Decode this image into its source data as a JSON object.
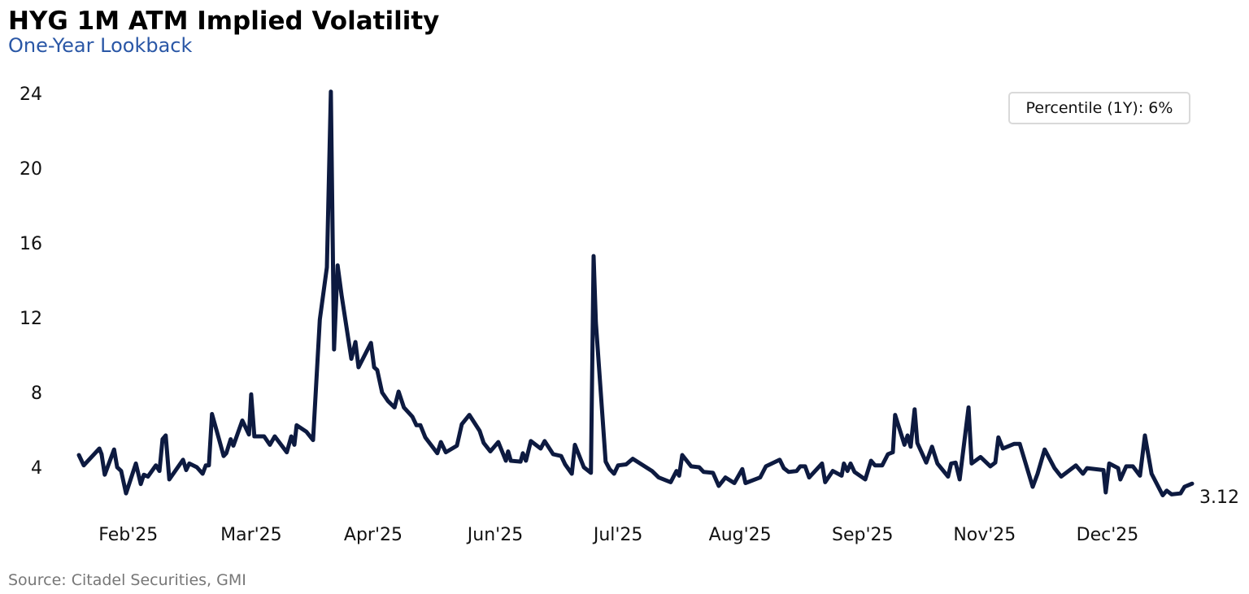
{
  "title": "HYG 1M ATM Implied Volatility",
  "subtitle": "One-Year Lookback",
  "source": "Source: Citadel Securities, GMI",
  "legend_text": "Percentile (1Y): 6%",
  "last_value_label": "3.12",
  "colors": {
    "line": "#0d1a40",
    "subtitle": "#2a57a6"
  },
  "chart_data": {
    "type": "line",
    "title": "HYG 1M ATM Implied Volatility",
    "subtitle": "One-Year Lookback",
    "xlabel": "",
    "ylabel": "",
    "ylim": [
      0,
      24.5
    ],
    "xlim": [
      0,
      250
    ],
    "grid": false,
    "legend": "top-right",
    "yticks": [
      4,
      8,
      12,
      16,
      20,
      24
    ],
    "xticks": [
      {
        "x": 11.1,
        "label": "Feb'25"
      },
      {
        "x": 38.7,
        "label": "Mar'25"
      },
      {
        "x": 66.1,
        "label": "Apr'25"
      },
      {
        "x": 93.5,
        "label": "Jun'25"
      },
      {
        "x": 121.1,
        "label": "Jul'25"
      },
      {
        "x": 148.5,
        "label": "Aug'25"
      },
      {
        "x": 176.0,
        "label": "Sep'25"
      },
      {
        "x": 203.4,
        "label": "Nov'25"
      },
      {
        "x": 231.0,
        "label": "Dec'25"
      }
    ],
    "series": [
      {
        "x": [
          0,
          1.1,
          4.6,
          5.1,
          5.8,
          7.9,
          8.6,
          9.5,
          10.6,
          12.8,
          13.9,
          14.6,
          15.5,
          17.3,
          18.1,
          18.8,
          19.5,
          20.3,
          23.4,
          24.1,
          24.8,
          26.5,
          27.8,
          28.5,
          29.2,
          29.9,
          31.6,
          32.5,
          33.1,
          34.1,
          34.7,
          36.7,
          38.2,
          38.7,
          39.4,
          41.6,
          42.9,
          44.0,
          46.7,
          47.7,
          48.4,
          48.9,
          51.1,
          52.6,
          54.1,
          55.7,
          56.6,
          57.3,
          58.1,
          59.0,
          61.2,
          62.1,
          62.8,
          65.6,
          66.3,
          67.0,
          68.1,
          69.4,
          70.9,
          71.8,
          73.0,
          74.9,
          75.8,
          76.7,
          77.8,
          80.5,
          81.3,
          82.4,
          84.9,
          86.0,
          87.7,
          90.0,
          90.9,
          92.4,
          94.2,
          95.9,
          96.4,
          97.0,
          99.2,
          99.7,
          100.4,
          101.5,
          103.7,
          104.6,
          106.5,
          108.3,
          109.2,
          110.7,
          111.4,
          113.4,
          115.0,
          115.6,
          116.1,
          118.3,
          119.2,
          120.2,
          121.1,
          122.9,
          124.4,
          128.7,
          130.2,
          132.9,
          134.2,
          134.8,
          135.5,
          137.5,
          139.3,
          140.3,
          142.4,
          143.7,
          145.2,
          147.2,
          149.0,
          149.7,
          153.0,
          154.3,
          157.4,
          158.3,
          159.4,
          161.2,
          162.0,
          163.1,
          164.0,
          166.9,
          167.6,
          169.3,
          171.3,
          171.8,
          172.6,
          173.3,
          174.2,
          176.6,
          177.9,
          178.8,
          180.4,
          181.7,
          182.8,
          183.3,
          185.4,
          186.1,
          186.8,
          187.7,
          188.3,
          190.3,
          191.6,
          192.8,
          195.2,
          195.9,
          196.9,
          197.8,
          199.8,
          200.5,
          202.5,
          204.7,
          205.8,
          206.5,
          207.5,
          210.0,
          211.3,
          214.2,
          215.3,
          216.9,
          219.1,
          220.6,
          223.9,
          225.5,
          226.4,
          230.1,
          230.6,
          231.4,
          233.4,
          233.9,
          235.2,
          236.7,
          238.3,
          239.4,
          240.9,
          243.4,
          244.3,
          245.4,
          247.4,
          248.3,
          250.0
        ],
        "y": [
          4.65,
          4.1,
          5.0,
          4.7,
          3.6,
          4.95,
          4.0,
          3.8,
          2.6,
          4.2,
          3.1,
          3.6,
          3.5,
          4.1,
          3.8,
          5.5,
          5.7,
          3.35,
          4.4,
          3.85,
          4.2,
          4.0,
          3.65,
          4.1,
          4.1,
          6.85,
          5.4,
          4.6,
          4.75,
          5.5,
          5.15,
          6.5,
          5.75,
          7.9,
          5.65,
          5.65,
          5.2,
          5.65,
          4.8,
          5.65,
          5.2,
          6.25,
          5.9,
          5.45,
          11.9,
          14.7,
          24.1,
          10.3,
          14.8,
          13.2,
          9.8,
          10.7,
          9.35,
          10.65,
          9.35,
          9.2,
          8.0,
          7.55,
          7.2,
          8.05,
          7.2,
          6.7,
          6.25,
          6.25,
          5.6,
          4.75,
          5.35,
          4.8,
          5.15,
          6.3,
          6.8,
          5.95,
          5.3,
          4.85,
          5.35,
          4.35,
          4.85,
          4.35,
          4.3,
          4.75,
          4.35,
          5.4,
          5.0,
          5.4,
          4.7,
          4.6,
          4.15,
          3.65,
          5.2,
          4.0,
          3.7,
          15.3,
          11.75,
          4.3,
          3.9,
          3.65,
          4.1,
          4.15,
          4.45,
          3.8,
          3.45,
          3.2,
          3.8,
          3.55,
          4.65,
          4.05,
          4.0,
          3.75,
          3.7,
          3.0,
          3.45,
          3.15,
          3.9,
          3.15,
          3.45,
          4.05,
          4.4,
          3.95,
          3.75,
          3.8,
          4.05,
          4.05,
          3.45,
          4.2,
          3.2,
          3.8,
          3.55,
          4.2,
          3.8,
          4.2,
          3.75,
          3.35,
          4.35,
          4.1,
          4.1,
          4.7,
          4.8,
          6.8,
          5.2,
          5.7,
          5.1,
          7.1,
          5.3,
          4.25,
          5.1,
          4.2,
          3.5,
          4.2,
          4.25,
          3.35,
          7.2,
          4.2,
          4.55,
          4.05,
          4.25,
          5.6,
          5.0,
          5.25,
          5.25,
          2.95,
          3.65,
          4.95,
          3.95,
          3.5,
          4.1,
          3.65,
          3.95,
          3.85,
          2.65,
          4.2,
          3.95,
          3.35,
          4.05,
          4.05,
          3.55,
          5.7,
          3.65,
          2.5,
          2.75,
          2.55,
          2.6,
          2.95,
          3.12
        ]
      }
    ]
  }
}
